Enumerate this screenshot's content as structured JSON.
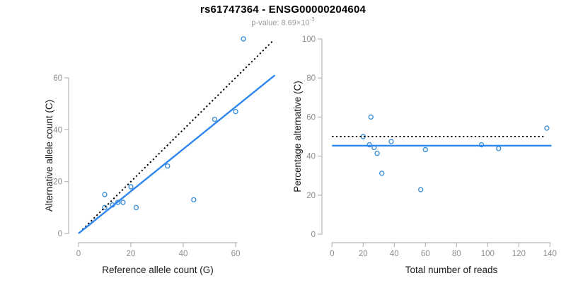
{
  "figure": {
    "title": "rs61747364 - ENSG00000204604",
    "subtitle": {
      "prefix": "p-value: 8.69×10",
      "exponent": "-3",
      "full": "p-value: 8.69×10^-3"
    }
  },
  "colors": {
    "regression_line": "#2e86f0",
    "point_stroke": "#4292d6",
    "identity_line": "#000000",
    "axis_line": "#b5b5b5",
    "tick_label": "#8c8c8c",
    "axis_title": "#1a1a1a",
    "subtitle_gray": "#9a9a9a",
    "title_black": "#000000",
    "background": "#ffffff"
  },
  "chart_data": [
    {
      "type": "scatter",
      "name": "allele-count-scatter",
      "title": "",
      "xlabel": "Reference allele count (G)",
      "ylabel": "Alternative allele count (C)",
      "xticks": [
        0,
        20,
        40,
        60
      ],
      "yticks": [
        0,
        20,
        40,
        60
      ],
      "xlim": [
        0,
        75.5
      ],
      "ylim": [
        0,
        76
      ],
      "grid": false,
      "legend": "none",
      "points": [
        [
          10,
          10
        ],
        [
          10,
          15
        ],
        [
          13,
          11
        ],
        [
          15,
          12
        ],
        [
          17,
          12
        ],
        [
          20,
          18
        ],
        [
          22,
          10
        ],
        [
          34,
          26
        ],
        [
          44,
          13
        ],
        [
          52,
          44
        ],
        [
          60,
          47
        ],
        [
          63,
          75
        ]
      ],
      "lines": [
        {
          "name": "identity",
          "style": "dotted",
          "color": "identity_line",
          "x1": 1.5,
          "y1": 1.5,
          "x2": 74.3,
          "y2": 74.3
        },
        {
          "name": "regression",
          "style": "solid",
          "color": "regression_line",
          "x1": 0,
          "y1": 0,
          "x2": 75,
          "y2": 61
        }
      ]
    },
    {
      "type": "scatter",
      "name": "percentage-alternative-scatter",
      "title": "",
      "xlabel": "Total number of reads",
      "ylabel": "Percentage alternative (C)",
      "xticks": [
        0,
        20,
        40,
        60,
        80,
        100,
        120,
        140
      ],
      "yticks": [
        0,
        20,
        40,
        60,
        80,
        100
      ],
      "xlim": [
        0,
        141
      ],
      "ylim": [
        0,
        100
      ],
      "grid": false,
      "legend": "none",
      "points": [
        [
          20,
          50.0
        ],
        [
          25,
          60.0
        ],
        [
          24,
          45.8
        ],
        [
          27,
          44.4
        ],
        [
          29,
          41.4
        ],
        [
          38,
          47.4
        ],
        [
          32,
          31.2
        ],
        [
          57,
          22.8
        ],
        [
          60,
          43.3
        ],
        [
          96,
          45.8
        ],
        [
          107,
          43.9
        ],
        [
          138,
          54.3
        ]
      ],
      "lines": [
        {
          "name": "expected-50pct",
          "style": "dotted",
          "color": "identity_line",
          "x1": 0,
          "y1": 50,
          "x2": 136,
          "y2": 50
        },
        {
          "name": "fitted-mean",
          "style": "solid",
          "color": "regression_line",
          "x1": 0,
          "y1": 45.3,
          "x2": 141,
          "y2": 45.3
        }
      ]
    }
  ]
}
